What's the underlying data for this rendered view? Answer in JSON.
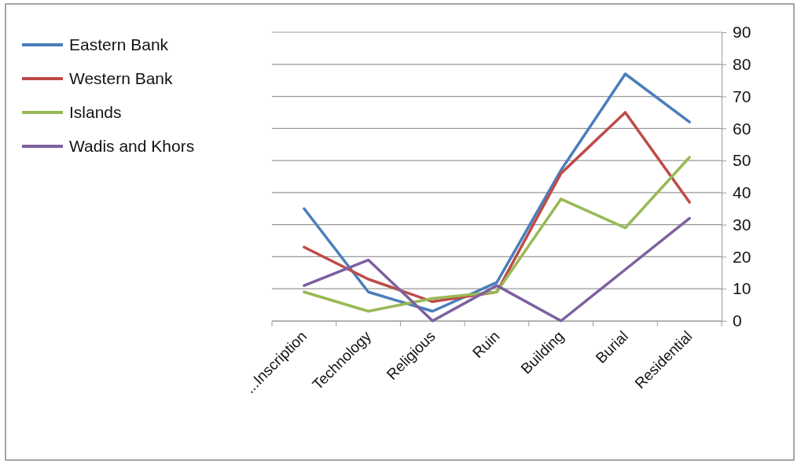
{
  "chart_data": {
    "type": "line",
    "categories": [
      "...Inscription",
      "Technology",
      "Religious",
      "Ruin",
      "Building",
      "Burial",
      "Residential"
    ],
    "series": [
      {
        "name": "Eastern Bank",
        "color": "#4a7ebb",
        "values": [
          35,
          9,
          3,
          12,
          47,
          77,
          62
        ]
      },
      {
        "name": "Western Bank",
        "color": "#be4b48",
        "values": [
          23,
          13,
          6,
          9,
          46,
          65,
          37
        ]
      },
      {
        "name": "Islands",
        "color": "#98b954",
        "values": [
          9,
          3,
          7,
          9,
          38,
          29,
          51
        ]
      },
      {
        "name": "Wadis and Khors",
        "color": "#7d60a0",
        "values": [
          11,
          19,
          0,
          11,
          0,
          16,
          32
        ]
      }
    ],
    "ylim": [
      0,
      90
    ],
    "yticks": [
      0,
      10,
      20,
      30,
      40,
      50,
      60,
      70,
      80,
      90
    ],
    "grid": "y",
    "legend": "left",
    "marker": "none",
    "line_style": "solid"
  }
}
